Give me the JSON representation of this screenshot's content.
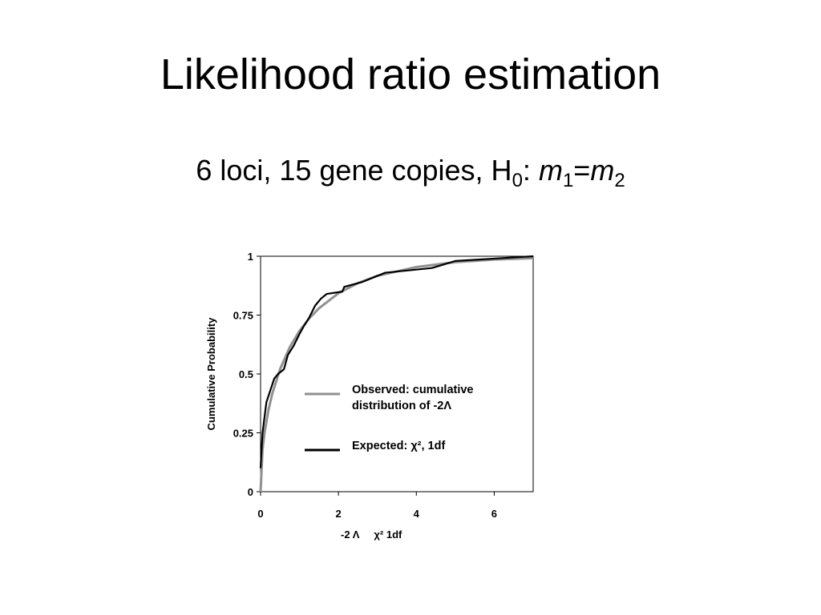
{
  "slide": {
    "title": "Likelihood ratio estimation",
    "subtitle_parts": [
      "6 loci, 15 gene copies, H",
      "0",
      ": ",
      "m",
      "1",
      "=",
      "m",
      "2"
    ]
  },
  "chart_data": {
    "type": "line",
    "xlabel": "-2 Λ     χ² 1df",
    "ylabel": "Cumulative Probability",
    "xlim": [
      0,
      7
    ],
    "ylim": [
      0,
      1
    ],
    "xticks": [
      0,
      2,
      4,
      6
    ],
    "yticks": [
      0,
      0.25,
      0.5,
      0.75,
      1
    ],
    "series": [
      {
        "name": "Observed: cumulative distribution of -2Λ",
        "color": "#909090",
        "x": [
          0,
          0.05,
          0.1,
          0.2,
          0.3,
          0.5,
          0.75,
          1,
          1.25,
          1.5,
          2,
          2.5,
          3,
          4,
          5,
          6,
          7
        ],
        "values": [
          0,
          0.177,
          0.248,
          0.345,
          0.416,
          0.52,
          0.614,
          0.683,
          0.736,
          0.779,
          0.843,
          0.886,
          0.917,
          0.954,
          0.975,
          0.986,
          0.992
        ]
      },
      {
        "name": "Expected: χ², 1df",
        "color": "#000000",
        "x": [
          0,
          0.05,
          0.15,
          0.25,
          0.35,
          0.45,
          0.6,
          0.7,
          0.85,
          1,
          1.1,
          1.25,
          1.4,
          1.55,
          1.7,
          2.1,
          2.15,
          2.6,
          3.2,
          4.4,
          4.6,
          5,
          6,
          7
        ],
        "values": [
          0.1,
          0.25,
          0.38,
          0.43,
          0.48,
          0.5,
          0.52,
          0.58,
          0.62,
          0.67,
          0.7,
          0.74,
          0.79,
          0.82,
          0.84,
          0.85,
          0.87,
          0.89,
          0.93,
          0.95,
          0.96,
          0.98,
          0.99,
          1
        ]
      }
    ]
  }
}
